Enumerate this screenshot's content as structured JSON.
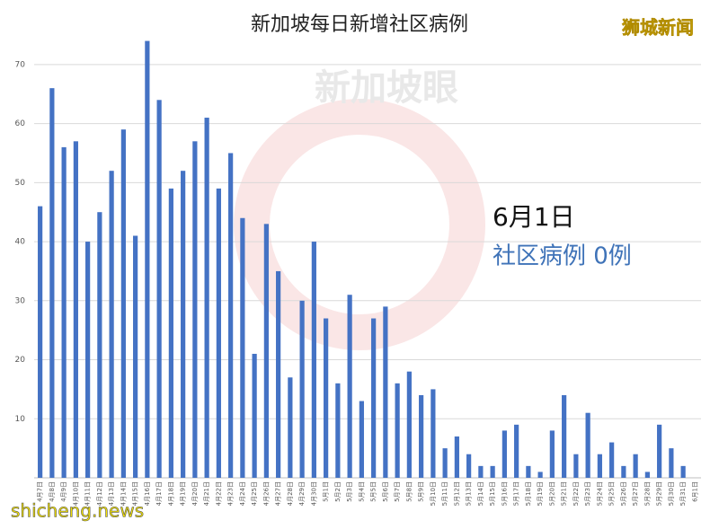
{
  "chart_data": {
    "type": "bar",
    "title": "新加坡每日新增社区病例",
    "source": "狮城新闻",
    "watermark": "新加坡眼",
    "site": "shicheng.news",
    "annotation_date": "6月1日",
    "annotation_text": "社区病例 0例",
    "categories": [
      "4月7日",
      "4月8日",
      "4月9日",
      "4月10日",
      "4月11日",
      "4月12日",
      "4月13日",
      "4月14日",
      "4月15日",
      "4月16日",
      "4月17日",
      "4月18日",
      "4月19日",
      "4月20日",
      "4月21日",
      "4月22日",
      "4月23日",
      "4月24日",
      "4月25日",
      "4月26日",
      "4月27日",
      "4月28日",
      "4月29日",
      "4月30日",
      "5月1日",
      "5月2日",
      "5月3日",
      "5月4日",
      "5月5日",
      "5月6日",
      "5月7日",
      "5月8日",
      "5月9日",
      "5月10日",
      "5月11日",
      "5月12日",
      "5月13日",
      "5月14日",
      "5月15日",
      "5月16日",
      "5月17日",
      "5月18日",
      "5月19日",
      "5月20日",
      "5月21日",
      "5月22日",
      "5月23日",
      "5月24日",
      "5月25日",
      "5月26日",
      "5月27日",
      "5月28日",
      "5月29日",
      "5月30日",
      "5月31日",
      "6月1日"
    ],
    "values": [
      46,
      66,
      56,
      57,
      40,
      45,
      52,
      59,
      41,
      74,
      64,
      49,
      52,
      57,
      61,
      49,
      55,
      44,
      21,
      43,
      35,
      17,
      30,
      40,
      27,
      16,
      31,
      13,
      27,
      29,
      16,
      18,
      14,
      15,
      5,
      7,
      4,
      2,
      2,
      8,
      9,
      2,
      1,
      8,
      14,
      4,
      11,
      4,
      6,
      2,
      4,
      1,
      9,
      5,
      2,
      0
    ],
    "color": "#4472c4",
    "ylim": [
      0,
      75
    ],
    "yticks": [
      10,
      20,
      30,
      40,
      50,
      60,
      70
    ],
    "grid": true
  }
}
